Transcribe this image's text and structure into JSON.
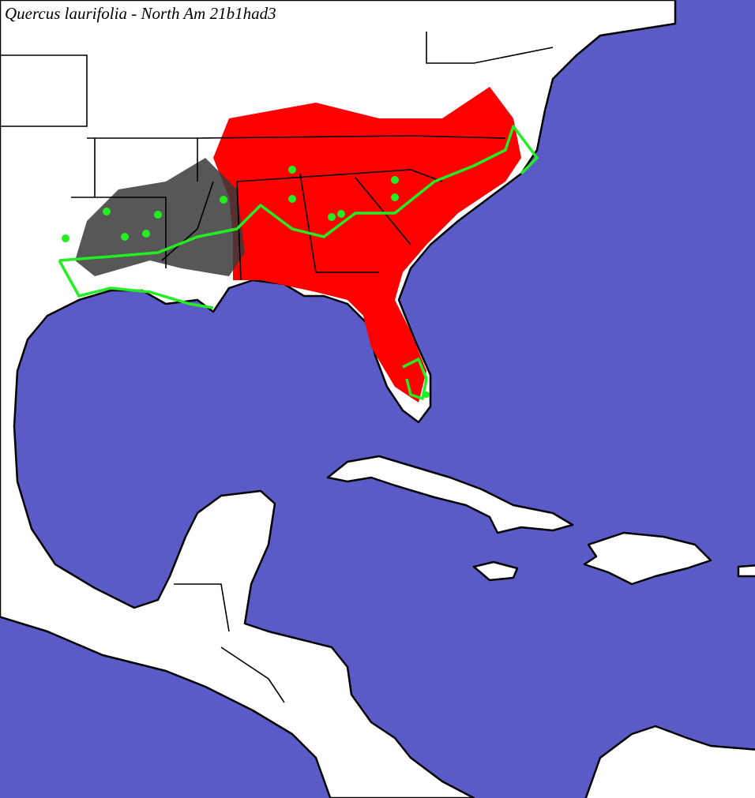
{
  "title": "Quercus laurifolia - North Am 21b1had3"
}
